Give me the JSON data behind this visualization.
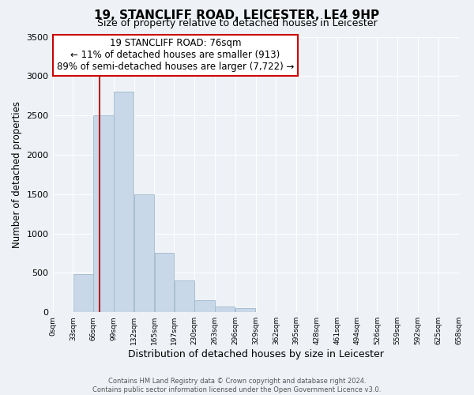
{
  "title": "19, STANCLIFF ROAD, LEICESTER, LE4 9HP",
  "subtitle": "Size of property relative to detached houses in Leicester",
  "xlabel": "Distribution of detached houses by size in Leicester",
  "ylabel": "Number of detached properties",
  "bin_edges": [
    0,
    33,
    66,
    99,
    132,
    165,
    197,
    230,
    263,
    296,
    329,
    362,
    395,
    428,
    461,
    494,
    526,
    559,
    592,
    625,
    658
  ],
  "counts": [
    0,
    480,
    2500,
    2800,
    1500,
    750,
    400,
    150,
    75,
    50,
    0,
    0,
    0,
    0,
    0,
    0,
    0,
    0,
    0,
    0
  ],
  "bar_color": "#c8d8e8",
  "bar_edge_color": "#a0b8cc",
  "vline_x": 76,
  "vline_color": "#b22222",
  "ylim": [
    0,
    3500
  ],
  "annotation_line1": "19 STANCLIFF ROAD: 76sqm",
  "annotation_line2": "← 11% of detached houses are smaller (913)",
  "annotation_line3": "89% of semi-detached houses are larger (7,722) →",
  "annotation_box_color": "#ffffff",
  "annotation_box_edgecolor": "#cc0000",
  "tick_labels": [
    "0sqm",
    "33sqm",
    "66sqm",
    "99sqm",
    "132sqm",
    "165sqm",
    "197sqm",
    "230sqm",
    "263sqm",
    "296sqm",
    "329sqm",
    "362sqm",
    "395sqm",
    "428sqm",
    "461sqm",
    "494sqm",
    "526sqm",
    "559sqm",
    "592sqm",
    "625sqm",
    "658sqm"
  ],
  "footer_line1": "Contains HM Land Registry data © Crown copyright and database right 2024.",
  "footer_line2": "Contains public sector information licensed under the Open Government Licence v3.0.",
  "background_color": "#eef2f7",
  "grid_color": "#ffffff",
  "yticks": [
    0,
    500,
    1000,
    1500,
    2000,
    2500,
    3000,
    3500
  ]
}
